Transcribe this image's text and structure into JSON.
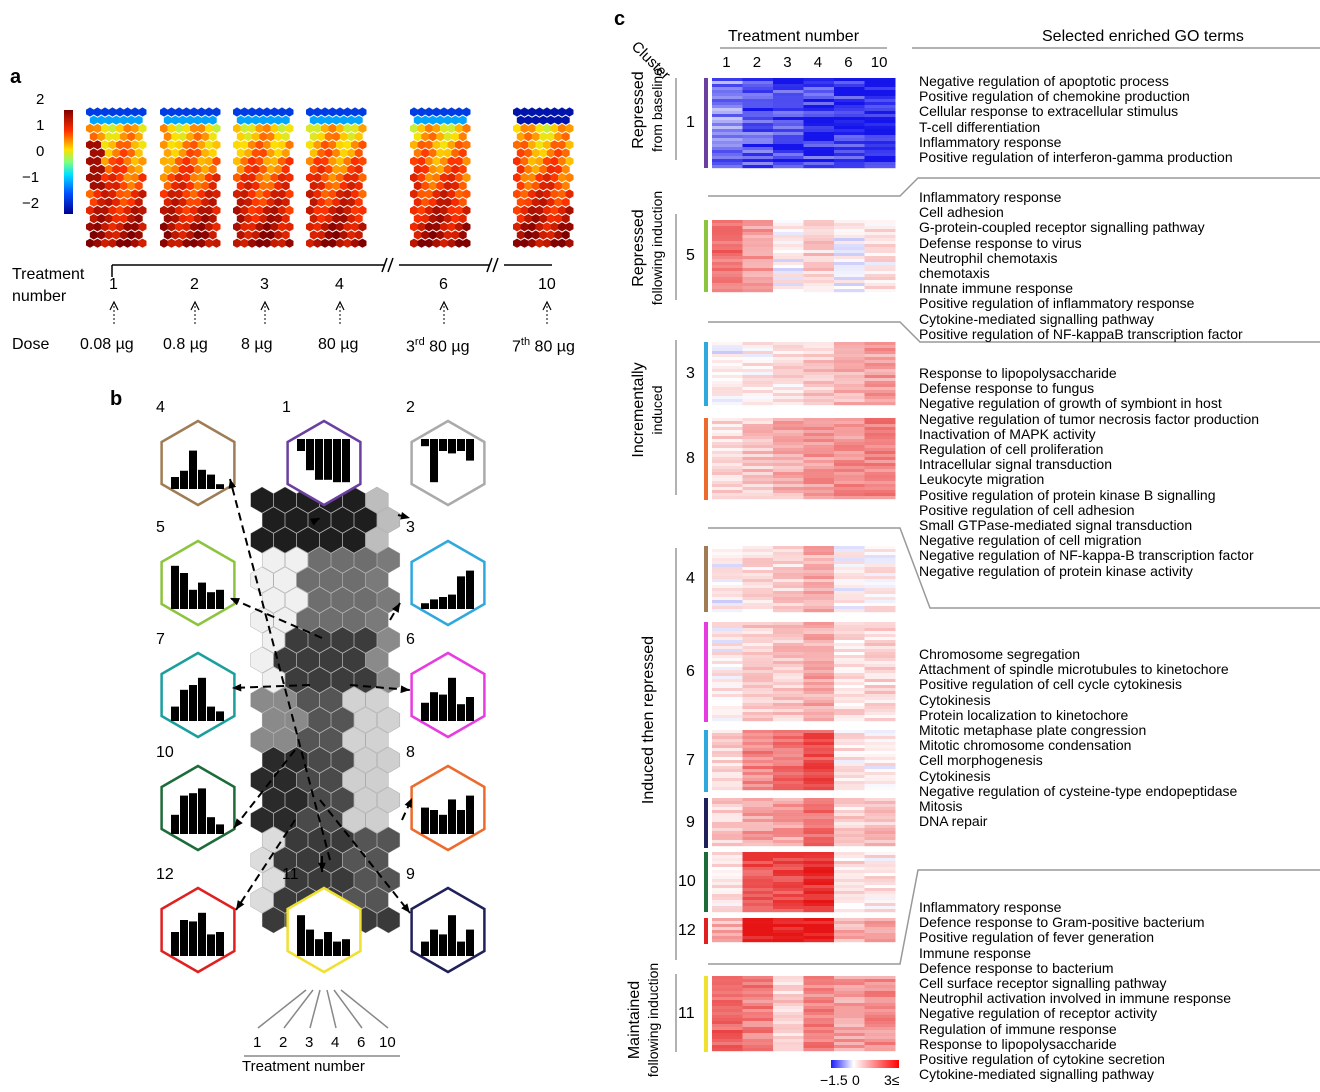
{
  "panel_a": {
    "letter": "a",
    "colorbar_ticks": [
      "2",
      "1",
      "0",
      "−1",
      "−2"
    ],
    "treatment_label_1": "Treatment",
    "treatment_label_2": "number",
    "dose_label": "Dose",
    "treatments": [
      "1",
      "2",
      "3",
      "4",
      "6",
      "10"
    ],
    "doses": [
      "0.08 µg",
      "0.8 µg",
      "8 µg",
      "80 µg",
      "80 µg",
      "80 µg"
    ],
    "dose_superscripts": [
      "",
      "",
      "",
      "",
      "rd",
      "th"
    ],
    "dose_prefixes": [
      "",
      "",
      "",
      "",
      "3",
      "7"
    ]
  },
  "panel_b": {
    "letter": "b",
    "axis_title": "Treatment number",
    "axis_ticks": [
      "1",
      "2",
      "3",
      "4",
      "6",
      "10"
    ],
    "clusters": [
      {
        "id": "4",
        "color": "#a07c55",
        "bars": [
          0.25,
          0.38,
          0.8,
          0.4,
          0.3,
          0.1
        ]
      },
      {
        "id": "1",
        "color": "#6b3fa0",
        "bars": [
          -0.25,
          -0.65,
          -0.85,
          -0.85,
          -0.9,
          -0.9
        ]
      },
      {
        "id": "2",
        "color": "#aaaaaa",
        "bars": [
          -0.15,
          -0.9,
          -0.25,
          -0.3,
          -0.25,
          -0.45
        ]
      },
      {
        "id": "5",
        "color": "#8cc440",
        "bars": [
          0.9,
          0.75,
          0.4,
          0.55,
          0.35,
          0.4
        ]
      },
      {
        "id": "3",
        "color": "#2fa8dd",
        "bars": [
          0.12,
          0.2,
          0.25,
          0.3,
          0.68,
          0.8
        ]
      },
      {
        "id": "7",
        "color": "#1a9e9e",
        "bars": [
          0.3,
          0.65,
          0.75,
          0.9,
          0.3,
          0.2
        ]
      },
      {
        "id": "6",
        "color": "#e63be0",
        "bars": [
          0.38,
          0.6,
          0.55,
          0.9,
          0.35,
          0.5
        ]
      },
      {
        "id": "10",
        "color": "#1e6b3a",
        "bars": [
          0.4,
          0.8,
          0.85,
          0.95,
          0.35,
          0.2
        ]
      },
      {
        "id": "8",
        "color": "#ec6a2c",
        "bars": [
          0.55,
          0.5,
          0.4,
          0.72,
          0.5,
          0.8
        ]
      },
      {
        "id": "12",
        "color": "#e02020",
        "bars": [
          0.5,
          0.75,
          0.72,
          0.9,
          0.45,
          0.5
        ]
      },
      {
        "id": "11",
        "color": "#f0e030",
        "bars": [
          0.85,
          0.55,
          0.35,
          0.5,
          0.3,
          0.35
        ]
      },
      {
        "id": "9",
        "color": "#20205a",
        "bars": [
          0.3,
          0.55,
          0.45,
          0.85,
          0.3,
          0.55
        ]
      }
    ]
  },
  "panel_c": {
    "letter": "c",
    "cluster_header": "Cluster",
    "treatment_header": "Treatment number",
    "go_header": "Selected enriched GO terms",
    "columns": [
      "1",
      "2",
      "3",
      "4",
      "6",
      "10"
    ],
    "colorbar_min": "−1.5",
    "colorbar_mid": "0",
    "colorbar_max": "3≤",
    "groups": [
      {
        "line1": "Repressed",
        "line2": "from baseline"
      },
      {
        "line1": "Repressed",
        "line2": "following induction"
      },
      {
        "line1": "Incrementally",
        "line2": "induced"
      },
      {
        "line1": "Induced then repressed",
        "line2": ""
      },
      {
        "line1": "Maintained",
        "line2": "following induction"
      }
    ],
    "heatmaps": [
      {
        "id": "1",
        "color": "#6b3fa0",
        "values": [
          -0.8,
          -1.1,
          -1.2,
          -1.2,
          -1.3,
          -1.5
        ]
      },
      {
        "id": "5",
        "color": "#8cc440",
        "values": [
          1.8,
          1.2,
          0.1,
          0.6,
          0.1,
          0.3
        ]
      },
      {
        "id": "3",
        "color": "#2fa8dd",
        "values": [
          0.1,
          0.3,
          0.4,
          0.7,
          1.0,
          1.2
        ]
      },
      {
        "id": "8",
        "color": "#ec6a2c",
        "values": [
          0.5,
          0.7,
          1.0,
          1.3,
          1.4,
          1.6
        ]
      },
      {
        "id": "4",
        "color": "#a07c55",
        "values": [
          0.1,
          0.4,
          0.6,
          1.0,
          0.1,
          0.2
        ]
      },
      {
        "id": "6",
        "color": "#e63be0",
        "values": [
          0.2,
          0.6,
          0.7,
          1.1,
          0.4,
          0.5
        ]
      },
      {
        "id": "7",
        "color": "#2fa8dd",
        "values": [
          0.5,
          1.5,
          1.8,
          2.2,
          0.3,
          0.2
        ]
      },
      {
        "id": "9",
        "color": "#20205a",
        "values": [
          0.6,
          1.2,
          1.2,
          1.8,
          0.5,
          0.8
        ]
      },
      {
        "id": "10",
        "color": "#1e6b3a",
        "values": [
          0.3,
          2.2,
          2.3,
          2.6,
          0.4,
          0.3
        ]
      },
      {
        "id": "12",
        "color": "#e02020",
        "values": [
          1.0,
          2.9,
          2.9,
          3.0,
          1.0,
          1.2
        ]
      },
      {
        "id": "11",
        "color": "#f0e030",
        "values": [
          2.0,
          1.6,
          0.6,
          1.6,
          1.2,
          1.4
        ]
      }
    ],
    "go_blocks": [
      [
        "Negative regulation of apoptotic process",
        "Positive regulation of chemokine production",
        "Cellular response to extracellular stimulus",
        "T-cell differentiation",
        "Inflammatory response",
        "Positive regulation of interferon-gamma production"
      ],
      [
        "Inflammatory response",
        "Cell adhesion",
        "G-protein-coupled receptor signalling pathway",
        "Defense response to virus",
        "Neutrophil chemotaxis",
        "chemotaxis",
        "Innate immune response",
        "Positive regulation of inflammatory response",
        "Cytokine-mediated signalling pathway",
        "Positive regulation of NF-kappaB transcription factor"
      ],
      [
        "Response to lipopolysaccharide",
        "Defense response to fungus",
        "Negative regulation of growth of symbiont in host",
        "Negative regulation of tumor necrosis factor production",
        "Inactivation of MAPK activity",
        "Regulation of cell proliferation",
        "Intracellular signal transduction",
        "Leukocyte migration",
        "Positive regulation of protein kinase B signalling",
        "Positive regulation of cell adhesion",
        "Small GTPase-mediated signal transduction",
        "Negative regulation of cell migration",
        "Negative regulation of NF-kappa-B transcription factor",
        "Negative regulation of protein kinase activity"
      ],
      [
        "Chromosome segregation",
        "Attachment of spindle microtubules to kinetochore",
        "Positive regulation of cell cycle cytokinesis",
        "Cytokinesis",
        "Protein localization to kinetochore",
        "Mitotic metaphase plate congression",
        "Mitotic chromosome condensation",
        "Cell morphogenesis",
        "Cytokinesis",
        "Negative regulation of cysteine-type endopeptidase",
        "Mitosis",
        "DNA repair"
      ],
      [
        "Inflammatory response",
        "Defence response to Gram-positive bacterium",
        "Positive regulation of fever generation",
        "Immune response",
        "Defence response to bacterium",
        "Cell surface receptor signalling pathway",
        "Neutrophil activation involved in immune response",
        "Negative regulation of receptor activity",
        "Regulation of immune response",
        "Response to lipopolysaccharide",
        "Positive regulation of cytokine secretion",
        "Cytokine-mediated signalling pathway"
      ]
    ]
  }
}
